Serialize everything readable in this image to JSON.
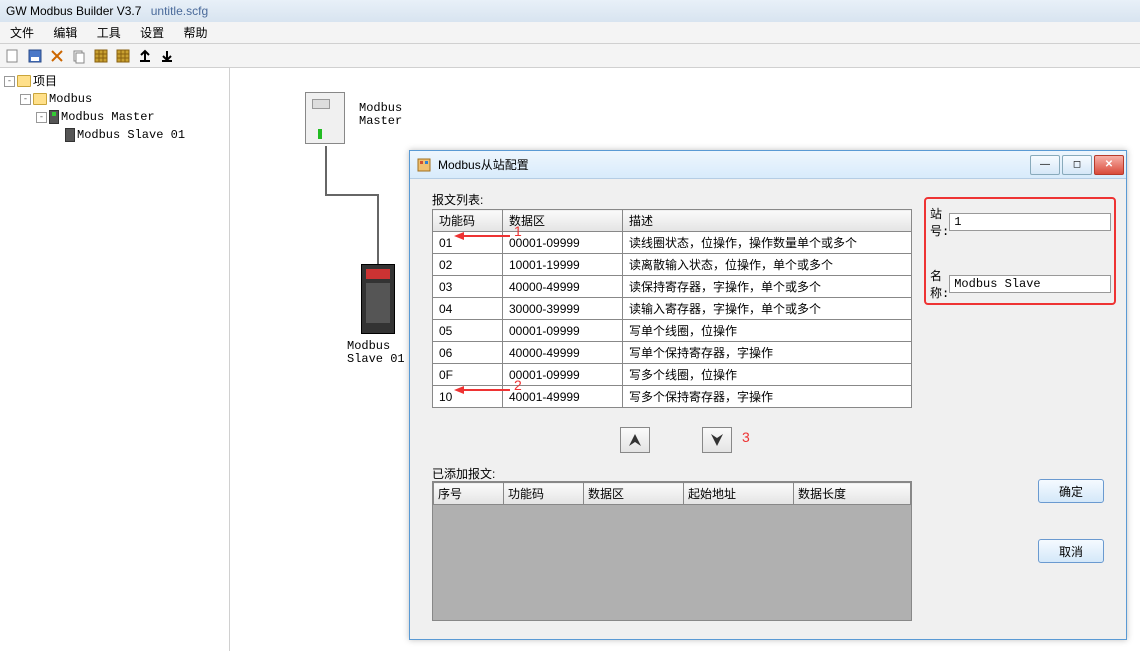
{
  "title": {
    "app": "GW Modbus Builder V3.7",
    "file": "untitle.scfg"
  },
  "menus": {
    "file": "文件",
    "edit": "编辑",
    "tool": "工具",
    "settings": "设置",
    "help": "帮助"
  },
  "tree": {
    "root": "项目",
    "n1": "Modbus",
    "n2": "Modbus Master",
    "n3": "Modbus Slave  01"
  },
  "canvas": {
    "master_label_l1": "Modbus",
    "master_label_l2": "Master",
    "slave_label_l1": "Modbus",
    "slave_label_l2": "Slave  01"
  },
  "dialog": {
    "title": "Modbus从站配置",
    "msg_list_label": "报文列表:",
    "added_label": "已添加报文:",
    "cols": {
      "fc": "功能码",
      "da": "数据区",
      "desc": "描述",
      "idx": "序号",
      "start": "起始地址",
      "len": "数据长度"
    },
    "rows": [
      {
        "fc": "01",
        "da": "00001-09999",
        "desc": "读线圈状态，位操作，操作数量单个或多个"
      },
      {
        "fc": "02",
        "da": "10001-19999",
        "desc": "读离散输入状态，位操作，单个或多个"
      },
      {
        "fc": "03",
        "da": "40000-49999",
        "desc": "读保持寄存器，字操作，单个或多个"
      },
      {
        "fc": "04",
        "da": "30000-39999",
        "desc": "读输入寄存器，字操作，单个或多个"
      },
      {
        "fc": "05",
        "da": "00001-09999",
        "desc": "写单个线圈，位操作"
      },
      {
        "fc": "06",
        "da": "40000-49999",
        "desc": "写单个保持寄存器，字操作"
      },
      {
        "fc": "0F",
        "da": "00001-09999",
        "desc": "写多个线圈，位操作"
      },
      {
        "fc": "10",
        "da": "40001-49999",
        "desc": "写多个保持寄存器，字操作"
      }
    ],
    "station_label": "站号:",
    "station_value": "1",
    "name_label": "名称:",
    "name_value": "Modbus Slave",
    "ok": "确定",
    "cancel": "取消"
  },
  "annotations": {
    "a1": "1",
    "a2": "2",
    "a3": "3"
  }
}
